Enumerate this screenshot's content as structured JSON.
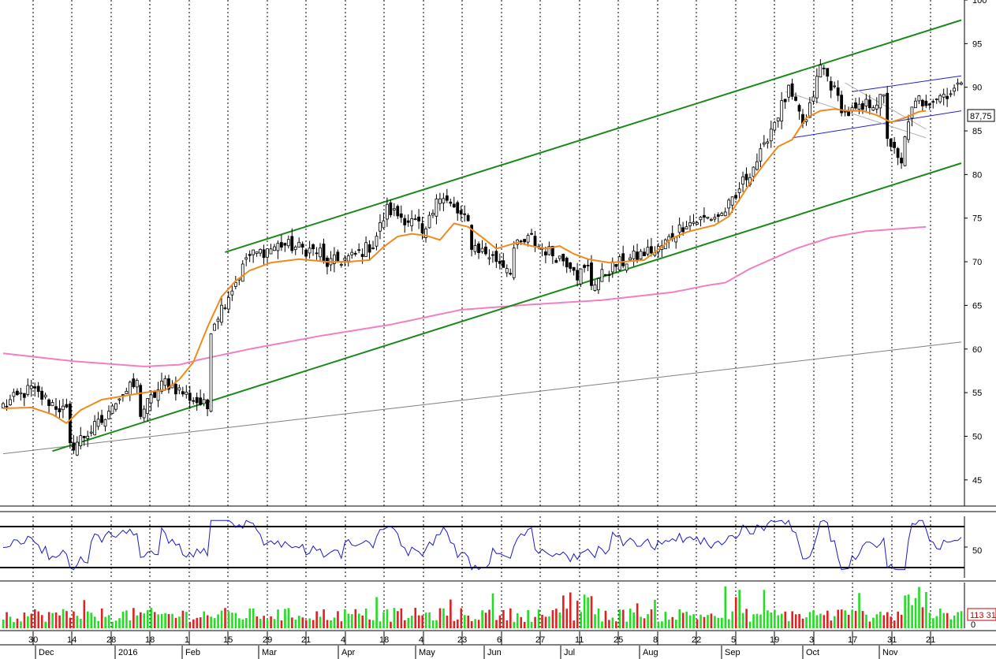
{
  "chart_data": {
    "type": "candlestick",
    "price_panel": {
      "ylim": [
        42,
        100
      ],
      "y_ticks": [
        45,
        50,
        55,
        60,
        65,
        70,
        75,
        80,
        85,
        90,
        95,
        100
      ],
      "last_price_label": "87,75",
      "colors": {
        "up": "#ffffff",
        "down": "#000000",
        "ma_short": "#f08a1c",
        "ma_long": "#f080c0",
        "channel": "#1a8a1a",
        "small_channel": "#2020d0",
        "long_trend": "#808080"
      },
      "ma_short_points": [
        [
          0,
          53.2
        ],
        [
          8,
          53.3
        ],
        [
          14,
          52.5
        ],
        [
          18,
          51.5
        ],
        [
          22,
          53
        ],
        [
          28,
          54.2
        ],
        [
          34,
          54.6
        ],
        [
          40,
          55
        ],
        [
          46,
          55.3
        ],
        [
          50,
          56.5
        ],
        [
          54,
          58.5
        ],
        [
          58,
          62.5
        ],
        [
          62,
          66
        ],
        [
          66,
          67.8
        ],
        [
          70,
          69
        ],
        [
          76,
          69.9
        ],
        [
          84,
          70.3
        ],
        [
          92,
          70
        ],
        [
          98,
          70
        ],
        [
          104,
          70.2
        ],
        [
          108,
          71.7
        ],
        [
          112,
          72.9
        ],
        [
          116,
          73.2
        ],
        [
          120,
          73
        ],
        [
          124,
          72.5
        ],
        [
          128,
          74.4
        ],
        [
          132,
          74
        ],
        [
          136,
          72.8
        ],
        [
          140,
          71.5
        ],
        [
          146,
          72.2
        ],
        [
          150,
          71.8
        ],
        [
          154,
          71.5
        ],
        [
          158,
          71.8
        ],
        [
          162,
          70.9
        ],
        [
          166,
          70.3
        ],
        [
          172,
          69.9
        ],
        [
          176,
          70
        ],
        [
          182,
          70.2
        ],
        [
          186,
          71.4
        ],
        [
          190,
          72.7
        ],
        [
          194,
          73.4
        ],
        [
          198,
          73.8
        ],
        [
          202,
          74.2
        ],
        [
          206,
          75.2
        ],
        [
          208,
          76.5
        ],
        [
          212,
          79
        ],
        [
          216,
          81.2
        ],
        [
          220,
          83.2
        ],
        [
          224,
          84
        ],
        [
          228,
          86.5
        ],
        [
          232,
          87.3
        ],
        [
          236,
          87.5
        ],
        [
          240,
          87.3
        ],
        [
          244,
          87.3
        ],
        [
          248,
          86.8
        ],
        [
          252,
          86
        ],
        [
          256,
          86.5
        ],
        [
          260,
          87.2
        ],
        [
          262,
          87.3
        ]
      ],
      "ma_long_points": [
        [
          0,
          59.5
        ],
        [
          20,
          58.6
        ],
        [
          40,
          58
        ],
        [
          50,
          58.2
        ],
        [
          56,
          58.8
        ],
        [
          70,
          60
        ],
        [
          90,
          61.5
        ],
        [
          110,
          62.8
        ],
        [
          130,
          64.5
        ],
        [
          150,
          65.1
        ],
        [
          170,
          65.6
        ],
        [
          190,
          66.5
        ],
        [
          200,
          67.3
        ],
        [
          205,
          67.6
        ],
        [
          212,
          69.2
        ],
        [
          225,
          71.5
        ],
        [
          235,
          72.8
        ],
        [
          245,
          73.5
        ],
        [
          262,
          74
        ]
      ],
      "green_channel_lower": [
        [
          14,
          48.3
        ],
        [
          272,
          81.3
        ]
      ],
      "green_channel_upper": [
        [
          63,
          71.1
        ],
        [
          272,
          97.7
        ]
      ],
      "blue_channel_upper": [
        [
          241,
          89.5
        ],
        [
          272,
          91.3
        ]
      ],
      "blue_channel_lower": [
        [
          224,
          84.2
        ],
        [
          272,
          87.3
        ]
      ],
      "long_trend_line": [
        [
          0,
          48
        ],
        [
          272,
          60.8
        ]
      ],
      "gray_channel_a": [
        [
          222,
          89.5
        ],
        [
          262,
          84.2
        ]
      ],
      "gray_channel_b": [
        [
          239,
          90.5
        ],
        [
          262,
          85.2
        ]
      ],
      "candle_segments": [
        [
          1,
          53.5,
          2.2
        ],
        [
          10,
          55,
          -2.5
        ],
        [
          20,
          48.7,
          4
        ],
        [
          32,
          54,
          2.3
        ],
        [
          40,
          52.7,
          4.1
        ],
        [
          48,
          56,
          -3
        ],
        [
          60,
          62.5,
          7.5
        ],
        [
          70,
          70.5,
          1.5
        ],
        [
          80,
          72,
          -1
        ],
        [
          92,
          69.7,
          0.8
        ],
        [
          100,
          70.5,
          1.5
        ],
        [
          106,
          72,
          4
        ],
        [
          110,
          76,
          -2
        ],
        [
          120,
          72.5,
          4.5
        ],
        [
          124,
          78,
          -4
        ],
        [
          134,
          72,
          -3
        ],
        [
          146,
          71.5,
          1.5
        ],
        [
          152,
          72,
          -2.6
        ],
        [
          164,
          68.5,
          1
        ],
        [
          168,
          67.5,
          2.5
        ],
        [
          176,
          69.8,
          1.7
        ],
        [
          186,
          71,
          4
        ],
        [
          196,
          74.5,
          1
        ],
        [
          206,
          76,
          1.5
        ],
        [
          210,
          78.5,
          5
        ],
        [
          218,
          84.5,
          5
        ],
        [
          224,
          89.5,
          -4.5
        ],
        [
          229,
          86,
          8
        ],
        [
          234,
          92,
          -5
        ],
        [
          240,
          87,
          0.5
        ],
        [
          246,
          88,
          0.8
        ],
        [
          252,
          84.5,
          -4
        ],
        [
          256,
          81,
          6
        ],
        [
          258,
          86.5,
          2.8
        ],
        [
          262,
          88.3,
          1.7
        ]
      ]
    },
    "rsi_panel": {
      "levels": [
        30,
        70
      ],
      "y_tick_label": "50",
      "range": [
        20,
        80
      ],
      "color": "#1a1acd"
    },
    "volume_panel": {
      "last_volume_label": "113 31",
      "zero_label": "0",
      "colors": {
        "up": "#22dd22",
        "down": "#dd2222"
      }
    },
    "x_axis": {
      "day_labels": [
        "30",
        "14",
        "28",
        "18",
        "1",
        "15",
        "29",
        "21",
        "4",
        "18",
        "4",
        "23",
        "6",
        "27",
        "11",
        "25",
        "8",
        "22",
        "5",
        "19",
        "3",
        "17",
        "31",
        "21"
      ],
      "month_labels": [
        "Dec",
        "2016",
        "Feb",
        "Mar",
        "Apr",
        "May",
        "Jun",
        "Jul",
        "Aug",
        "Sep",
        "Oct",
        "Nov"
      ]
    }
  }
}
